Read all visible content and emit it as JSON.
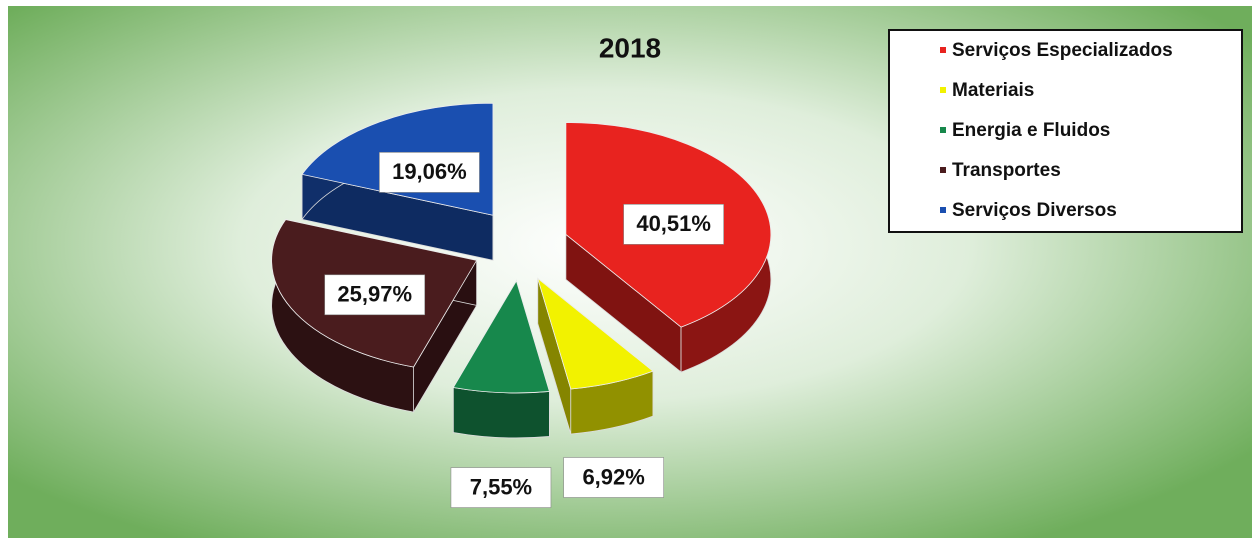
{
  "chart_data": {
    "type": "pie3d",
    "title": "2018",
    "categories": [
      "Serviços Especializados",
      "Materiais",
      "Energia e Fluidos",
      "Transportes",
      "Serviços Diversos"
    ],
    "values": [
      40.51,
      6.92,
      7.55,
      25.97,
      19.06
    ],
    "value_labels": [
      "40,51%",
      "6,92%",
      "7,55%",
      "25,97%",
      "19,06%"
    ],
    "colors": [
      "#e8231f",
      "#f2f200",
      "#17884c",
      "#4a1c1e",
      "#1a4fb0"
    ],
    "legend": "top-right"
  }
}
